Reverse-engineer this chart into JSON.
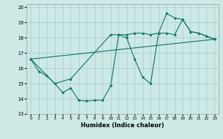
{
  "title": "",
  "xlabel": "Humidex (Indice chaleur)",
  "xlim": [
    -0.5,
    23.5
  ],
  "ylim": [
    13,
    20.2
  ],
  "yticks": [
    13,
    14,
    15,
    16,
    17,
    18,
    19,
    20
  ],
  "xticks": [
    0,
    1,
    2,
    3,
    4,
    5,
    6,
    7,
    8,
    9,
    10,
    11,
    12,
    13,
    14,
    15,
    16,
    17,
    18,
    19,
    20,
    21,
    22,
    23
  ],
  "bg_color": "#cce9e5",
  "grid_color": "#aad0cc",
  "line_color": "#1a7a6e",
  "line1_x": [
    0,
    1,
    2,
    3,
    4,
    5,
    6,
    7,
    8,
    9,
    10,
    11,
    12,
    13,
    14,
    15,
    16,
    17,
    18,
    19,
    20,
    21,
    22,
    23
  ],
  "line1_y": [
    16.6,
    15.8,
    15.5,
    15.0,
    14.4,
    14.7,
    13.9,
    13.85,
    13.9,
    13.9,
    14.85,
    18.2,
    18.0,
    16.6,
    15.4,
    15.0,
    18.3,
    18.3,
    18.2,
    19.2,
    18.4,
    18.3,
    18.1,
    17.9
  ],
  "line2_x": [
    0,
    3,
    5,
    10,
    11,
    12,
    13,
    14,
    15,
    16,
    17,
    18,
    19,
    20,
    21,
    22,
    23
  ],
  "line2_y": [
    16.6,
    15.0,
    15.3,
    18.2,
    18.2,
    18.2,
    18.3,
    18.3,
    18.2,
    18.3,
    19.6,
    19.3,
    19.2,
    18.4,
    18.3,
    18.1,
    17.9
  ],
  "line3_x": [
    0,
    23
  ],
  "line3_y": [
    16.6,
    17.9
  ]
}
